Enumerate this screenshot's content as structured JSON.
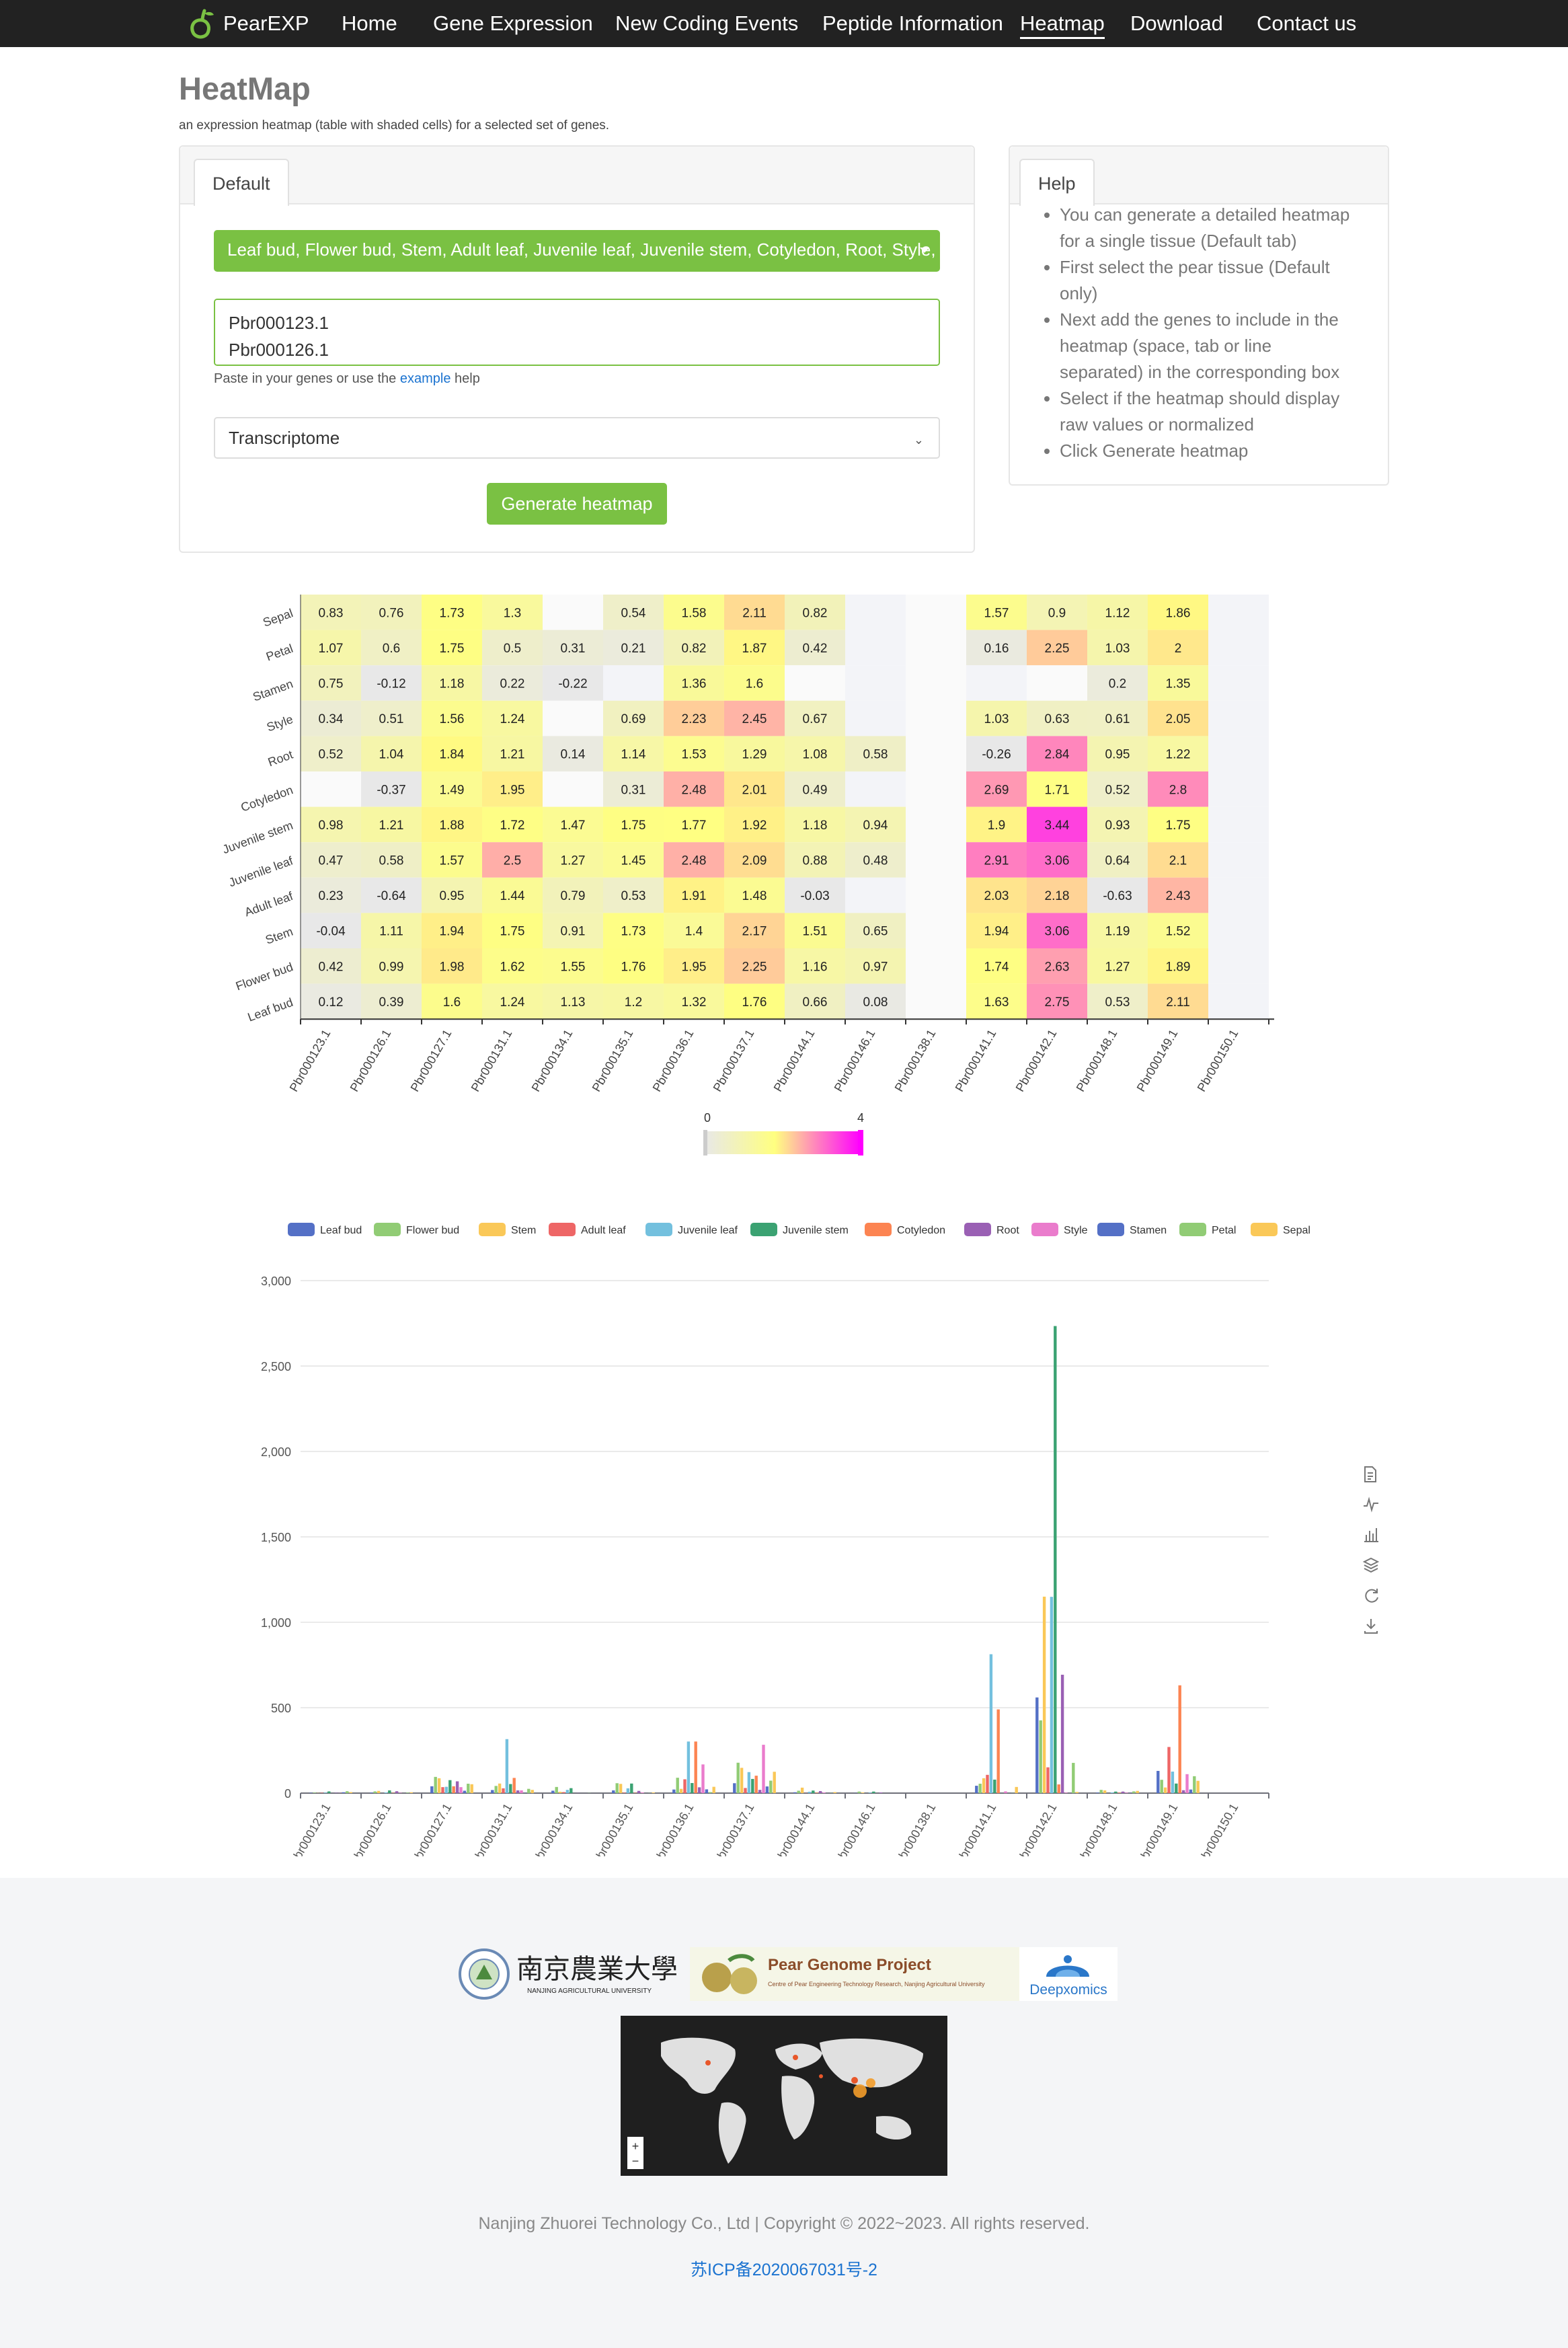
{
  "nav": {
    "brand": "PearEXP",
    "items": [
      "Home",
      "Gene Expression",
      "New Coding Events",
      "Peptide Information",
      "Heatmap",
      "Download",
      "Contact us"
    ],
    "active": "Heatmap"
  },
  "header": {
    "title": "HeatMap",
    "subtitle": "an expression heatmap (table with shaded cells) for a selected set of genes."
  },
  "form": {
    "tab": "Default",
    "tissues": "Leaf bud, Flower bud, Stem, Adult leaf, Juvenile leaf, Juvenile stem, Cotyledon, Root, Style, Stamen, Petal, Sepal",
    "genes": "Pbr000123.1\nPbr000126.1",
    "paste_help_prefix": "Paste in your genes or use the ",
    "paste_help_link": "example",
    "paste_help_suffix": " help",
    "dataset": "Transcriptome",
    "generate_label": "Generate heatmap"
  },
  "help": {
    "tab": "Help",
    "items": [
      "You can generate a detailed heatmap for a single tissue (Default tab)",
      "First select the pear tissue (Default only)",
      "Next add the genes to include in the heatmap (space, tab or line separated) in the corresponding box",
      "Select if the heatmap should display raw values or normalized",
      "Click Generate heatmap"
    ]
  },
  "chart_data": [
    {
      "type": "heatmap",
      "x": [
        "Pbr000123.1",
        "Pbr000126.1",
        "Pbr000127.1",
        "Pbr000131.1",
        "Pbr000134.1",
        "Pbr000135.1",
        "Pbr000136.1",
        "Pbr000137.1",
        "Pbr000144.1",
        "Pbr000146.1",
        "Pbr000138.1",
        "Pbr000141.1",
        "Pbr000142.1",
        "Pbr000148.1",
        "Pbr000149.1",
        "Pbr000150.1"
      ],
      "y": [
        "Sepal",
        "Petal",
        "Stamen",
        "Style",
        "Root",
        "Cotyledon",
        "Juvenile stem",
        "Juvenile leaf",
        "Adult leaf",
        "Stem",
        "Flower bud",
        "Leaf bud"
      ],
      "values": [
        [
          0.83,
          0.76,
          1.73,
          1.3,
          null,
          0.54,
          1.58,
          2.11,
          0.82,
          null,
          null,
          1.57,
          0.9,
          1.12,
          1.86,
          null
        ],
        [
          1.07,
          0.6,
          1.75,
          0.5,
          0.31,
          0.21,
          0.82,
          1.87,
          0.42,
          null,
          null,
          0.16,
          2.25,
          1.03,
          2,
          null
        ],
        [
          0.75,
          -0.12,
          1.18,
          0.22,
          -0.22,
          null,
          1.36,
          1.6,
          null,
          null,
          null,
          null,
          null,
          0.2,
          1.35,
          null
        ],
        [
          0.34,
          0.51,
          1.56,
          1.24,
          null,
          0.69,
          2.23,
          2.45,
          0.67,
          null,
          null,
          1.03,
          0.63,
          0.61,
          2.05,
          null
        ],
        [
          0.52,
          1.04,
          1.84,
          1.21,
          0.14,
          1.14,
          1.53,
          1.29,
          1.08,
          0.58,
          null,
          -0.26,
          2.84,
          0.95,
          1.22,
          null
        ],
        [
          null,
          -0.37,
          1.49,
          1.95,
          null,
          0.31,
          2.48,
          2.01,
          0.49,
          null,
          null,
          2.69,
          1.71,
          0.52,
          2.8,
          null
        ],
        [
          0.98,
          1.21,
          1.88,
          1.72,
          1.47,
          1.75,
          1.77,
          1.92,
          1.18,
          0.94,
          null,
          1.9,
          3.44,
          0.93,
          1.75,
          null
        ],
        [
          0.47,
          0.58,
          1.57,
          2.5,
          1.27,
          1.45,
          2.48,
          2.09,
          0.88,
          0.48,
          null,
          2.91,
          3.06,
          0.64,
          2.1,
          null
        ],
        [
          0.23,
          -0.64,
          0.95,
          1.44,
          0.79,
          0.53,
          1.91,
          1.48,
          -0.03,
          null,
          null,
          2.03,
          2.18,
          -0.63,
          2.43,
          null
        ],
        [
          -0.04,
          1.11,
          1.94,
          1.75,
          0.91,
          1.73,
          1.4,
          2.17,
          1.51,
          0.65,
          null,
          1.94,
          3.06,
          1.19,
          1.52,
          null
        ],
        [
          0.42,
          0.99,
          1.98,
          1.62,
          1.55,
          1.76,
          1.95,
          2.25,
          1.16,
          0.97,
          null,
          1.74,
          2.63,
          1.27,
          1.89,
          null
        ],
        [
          0.12,
          0.39,
          1.6,
          1.24,
          1.13,
          1.2,
          1.32,
          1.76,
          0.66,
          0.08,
          null,
          1.63,
          2.75,
          0.53,
          2.11,
          null
        ]
      ],
      "colorscale": {
        "min": 0,
        "max": 4,
        "colors": [
          "#e8e8e8",
          "#ffff80",
          "#ff00ff"
        ]
      }
    },
    {
      "type": "bar",
      "categories": [
        "Pbr000123.1",
        "Pbr000126.1",
        "Pbr000127.1",
        "Pbr000131.1",
        "Pbr000134.1",
        "Pbr000135.1",
        "Pbr000136.1",
        "Pbr000137.1",
        "Pbr000144.1",
        "Pbr000146.1",
        "Pbr000138.1",
        "Pbr000141.1",
        "Pbr000142.1",
        "Pbr000148.1",
        "Pbr000149.1",
        "Pbr000150.1"
      ],
      "ylim": [
        0,
        3000
      ],
      "yticks": [
        0,
        500,
        1000,
        1500,
        2000,
        2500,
        3000
      ],
      "ytick_labels": [
        "0",
        "500",
        "1,000",
        "1,500",
        "2,000",
        "2,500",
        "3,000"
      ],
      "legend_position": "top",
      "series": [
        {
          "name": "Leaf bud",
          "color": "#5470c6",
          "values": [
            2,
            3,
            40,
            18,
            14,
            16,
            21,
            58,
            5,
            1,
            0,
            43,
            560,
            3,
            130,
            0
          ]
        },
        {
          "name": "Flower bud",
          "color": "#91cc75",
          "values": [
            3,
            10,
            95,
            42,
            36,
            58,
            90,
            178,
            14,
            9,
            0,
            55,
            426,
            19,
            78,
            0
          ]
        },
        {
          "name": "Stem",
          "color": "#fac858",
          "values": [
            1,
            13,
            87,
            56,
            8,
            54,
            25,
            148,
            32,
            4,
            0,
            87,
            1150,
            16,
            33,
            0
          ]
        },
        {
          "name": "Adult leaf",
          "color": "#ee6666",
          "values": [
            2,
            0,
            35,
            28,
            6,
            3,
            81,
            30,
            1,
            0,
            0,
            107,
            151,
            0,
            270,
            0
          ]
        },
        {
          "name": "Juvenile leaf",
          "color": "#73c0de",
          "values": [
            3,
            4,
            37,
            316,
            19,
            28,
            302,
            123,
            8,
            3,
            0,
            813,
            1149,
            4,
            126,
            0
          ]
        },
        {
          "name": "Juvenile stem",
          "color": "#3ba272",
          "values": [
            10,
            16,
            76,
            53,
            29,
            56,
            59,
            83,
            15,
            9,
            0,
            79,
            2734,
            9,
            56,
            0
          ]
        },
        {
          "name": "Cotyledon",
          "color": "#fc8452",
          "values": [
            0,
            2,
            40,
            89,
            0,
            2,
            302,
            102,
            3,
            0,
            0,
            490,
            51,
            3,
            631,
            0
          ]
        },
        {
          "name": "Root",
          "color": "#9a60b4",
          "values": [
            2,
            11,
            69,
            16,
            1,
            13,
            34,
            19,
            12,
            4,
            0,
            0,
            693,
            9,
            17,
            0
          ]
        },
        {
          "name": "Style",
          "color": "#ea7ccc",
          "values": [
            1,
            2,
            35,
            16,
            0,
            4,
            168,
            283,
            4,
            0,
            0,
            10,
            3,
            3,
            111,
            0
          ]
        },
        {
          "name": "Stamen",
          "color": "#5470c6",
          "values": [
            5,
            0,
            14,
            1,
            0,
            0,
            22,
            39,
            0,
            0,
            0,
            0,
            0,
            1,
            21,
            0
          ]
        },
        {
          "name": "Petal",
          "color": "#91cc75",
          "values": [
            11,
            3,
            55,
            25,
            1,
            1,
            6,
            73,
            1,
            0,
            0,
            1,
            177,
            10,
            99,
            0
          ]
        },
        {
          "name": "Sepal",
          "color": "#fac858",
          "values": [
            6,
            5,
            52,
            19,
            0,
            4,
            37,
            125,
            6,
            0,
            0,
            36,
            7,
            13,
            72,
            0
          ]
        }
      ]
    }
  ],
  "toolbox": [
    "data-view-icon",
    "line-chart-icon",
    "bar-chart-icon",
    "stack-icon",
    "restore-icon",
    "download-icon"
  ],
  "footer": {
    "logo_nau_cn": "南京農業大學",
    "logo_nau_en": "NANJING AGRICULTURAL UNIVERSITY",
    "logo_pear_title": "Pear Genome Project",
    "logo_pear_sub": "Centre of Pear Engineering Technology Research, Nanjing Agricultural University",
    "logo_deep": "Deepxomics",
    "map_zoom_in": "+",
    "map_zoom_out": "−",
    "copyright": "Nanjing Zhuorei Technology Co., Ltd | Copyright © 2022~2023. All rights reserved.",
    "icp": "苏ICP备2020067031号-2"
  },
  "colors": {
    "navbar": "#222222",
    "accent_green": "#7ac143",
    "link": "#1b73d0"
  }
}
